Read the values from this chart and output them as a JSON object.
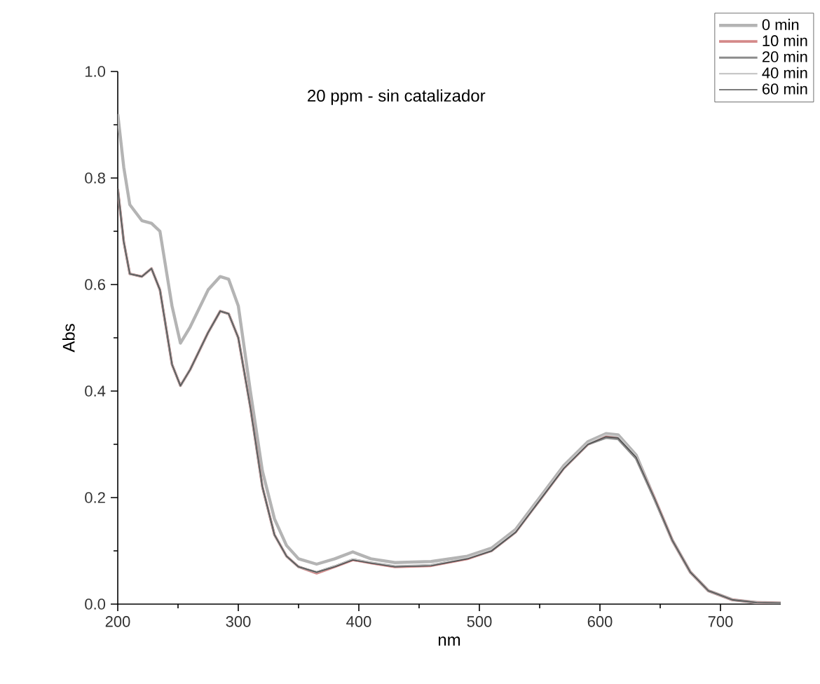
{
  "chart_data": {
    "type": "line",
    "title": "20 ppm - sin catalizador",
    "xlabel": "nm",
    "ylabel": "Abs",
    "xlim": [
      200,
      750
    ],
    "ylim": [
      0,
      1.0
    ],
    "xticks": [
      200,
      300,
      400,
      500,
      600,
      700
    ],
    "yticks": [
      {
        "value": 0,
        "label": "0.0"
      },
      0.2,
      0.4,
      0.6,
      0.8,
      {
        "value": 1.0,
        "label": "1.0"
      }
    ],
    "grid": false,
    "legend": "top right",
    "line_style": "solid",
    "marker": "none",
    "x": [
      200,
      205,
      210,
      220,
      228,
      235,
      245,
      252,
      260,
      275,
      285,
      292,
      300,
      310,
      320,
      330,
      340,
      350,
      365,
      380,
      395,
      410,
      430,
      460,
      490,
      510,
      530,
      550,
      570,
      590,
      605,
      615,
      630,
      645,
      660,
      675,
      690,
      710,
      730,
      750
    ],
    "series": [
      {
        "name": "0 min",
        "color": "#b4b4b4",
        "values": [
          0.92,
          0.82,
          0.75,
          0.72,
          0.715,
          0.7,
          0.56,
          0.49,
          0.52,
          0.59,
          0.615,
          0.61,
          0.56,
          0.4,
          0.25,
          0.16,
          0.11,
          0.085,
          0.075,
          0.085,
          0.098,
          0.085,
          0.078,
          0.08,
          0.09,
          0.105,
          0.14,
          0.2,
          0.26,
          0.305,
          0.32,
          0.318,
          0.28,
          0.2,
          0.12,
          0.06,
          0.025,
          0.008,
          0.003,
          0.002
        ]
      },
      {
        "name": "10 min",
        "color": "#d48a8a",
        "values": [
          0.78,
          0.68,
          0.62,
          0.615,
          0.63,
          0.59,
          0.45,
          0.41,
          0.44,
          0.51,
          0.55,
          0.545,
          0.5,
          0.37,
          0.22,
          0.13,
          0.09,
          0.07,
          0.058,
          0.07,
          0.083,
          0.077,
          0.07,
          0.072,
          0.085,
          0.1,
          0.135,
          0.195,
          0.255,
          0.3,
          0.315,
          0.312,
          0.275,
          0.2,
          0.12,
          0.06,
          0.025,
          0.008,
          0.003,
          0.002
        ]
      },
      {
        "name": "20 min",
        "color": "#8c8c8c",
        "values": [
          0.78,
          0.68,
          0.62,
          0.615,
          0.63,
          0.59,
          0.45,
          0.41,
          0.44,
          0.51,
          0.55,
          0.545,
          0.5,
          0.37,
          0.22,
          0.13,
          0.09,
          0.07,
          0.06,
          0.071,
          0.084,
          0.078,
          0.071,
          0.073,
          0.086,
          0.1,
          0.135,
          0.195,
          0.255,
          0.3,
          0.312,
          0.31,
          0.273,
          0.198,
          0.12,
          0.06,
          0.025,
          0.008,
          0.003,
          0.002
        ]
      },
      {
        "name": "40 min",
        "color": "#c8c8c8",
        "values": [
          0.78,
          0.68,
          0.62,
          0.615,
          0.63,
          0.59,
          0.45,
          0.41,
          0.44,
          0.51,
          0.55,
          0.545,
          0.5,
          0.37,
          0.22,
          0.13,
          0.09,
          0.07,
          0.06,
          0.071,
          0.084,
          0.078,
          0.071,
          0.073,
          0.087,
          0.102,
          0.137,
          0.197,
          0.257,
          0.302,
          0.318,
          0.315,
          0.278,
          0.2,
          0.12,
          0.06,
          0.025,
          0.008,
          0.003,
          0.002
        ]
      },
      {
        "name": "60 min",
        "color": "#505050",
        "values": [
          0.78,
          0.68,
          0.62,
          0.615,
          0.63,
          0.59,
          0.45,
          0.41,
          0.44,
          0.51,
          0.55,
          0.545,
          0.5,
          0.37,
          0.22,
          0.13,
          0.09,
          0.07,
          0.06,
          0.07,
          0.083,
          0.077,
          0.07,
          0.072,
          0.085,
          0.1,
          0.135,
          0.195,
          0.255,
          0.3,
          0.314,
          0.312,
          0.276,
          0.2,
          0.12,
          0.06,
          0.025,
          0.008,
          0.003,
          0.002
        ]
      }
    ]
  }
}
